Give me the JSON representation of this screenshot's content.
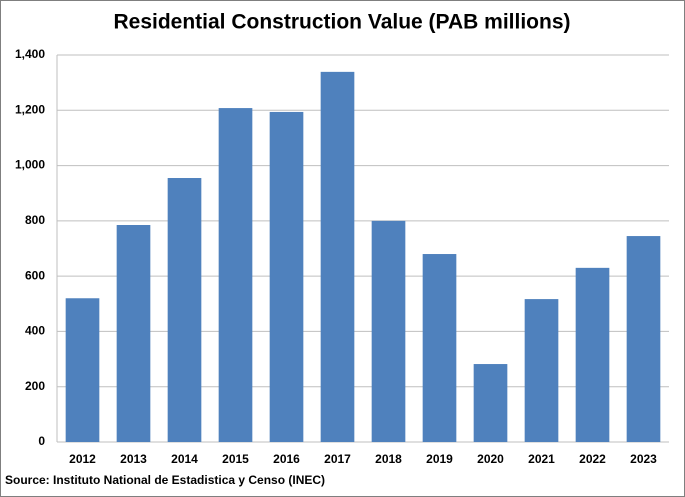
{
  "chart_data": {
    "type": "bar",
    "title": "Residential Construction Value (PAB millions)",
    "categories": [
      "2012",
      "2013",
      "2014",
      "2015",
      "2016",
      "2017",
      "2018",
      "2019",
      "2020",
      "2021",
      "2022",
      "2023"
    ],
    "values": [
      520,
      785,
      955,
      1208,
      1194,
      1339,
      800,
      680,
      282,
      517,
      630,
      745
    ],
    "color": "#4f81bd",
    "ylim": [
      0,
      1400
    ],
    "yticks": [
      0,
      200,
      400,
      600,
      800,
      {
        "value": 1000,
        "label": "1,000"
      },
      {
        "value": 1200,
        "label": "1,200"
      },
      {
        "value": 1400,
        "label": "1,400"
      }
    ],
    "grid": true,
    "source": "Source: Instituto National de Estadistica y Censo (INEC)"
  }
}
